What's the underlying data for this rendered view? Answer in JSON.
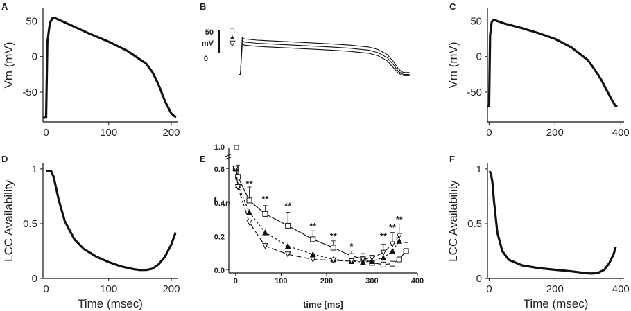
{
  "panel_labels": {
    "A": "A",
    "B": "B",
    "C": "C",
    "D": "D",
    "E": "E",
    "F": "F"
  },
  "chart_data": [
    {
      "id": "A",
      "type": "line",
      "title": "",
      "xlabel": "",
      "ylabel": "Vm (mV)",
      "xlim": [
        -5,
        210
      ],
      "ylim": [
        -92,
        68
      ],
      "xticks": [
        0,
        100,
        200
      ],
      "yticks": [
        -50,
        0,
        50
      ],
      "series": [
        {
          "name": "Vm",
          "x": [
            -5,
            -1,
            0,
            2,
            6,
            10,
            15,
            20,
            30,
            50,
            70,
            100,
            130,
            160,
            170,
            180,
            190,
            200,
            205,
            208
          ],
          "y": [
            -86,
            -86,
            -86,
            20,
            47,
            54,
            54,
            52,
            48,
            40,
            32,
            21,
            8,
            -10,
            -22,
            -40,
            -63,
            -80,
            -84,
            -85
          ]
        }
      ]
    },
    {
      "id": "B",
      "type": "line",
      "title": "",
      "xlabel": "",
      "ylabel": "",
      "scale_bar": {
        "top_label": "50",
        "unit_label": "mV",
        "bottom_label": "0"
      },
      "legend": [
        "□",
        "▲",
        "▽"
      ],
      "xlim": [
        0,
        100
      ],
      "ylim": [
        -15,
        65
      ],
      "series": [
        {
          "name": "trace 1",
          "x": [
            0,
            1,
            2,
            3,
            10,
            30,
            50,
            60,
            70,
            75,
            80,
            83,
            86,
            88,
            89,
            92
          ],
          "y": [
            -10,
            -10,
            50,
            47,
            45,
            42,
            39,
            37,
            34,
            30,
            22,
            12,
            -1,
            -6,
            -7,
            -7
          ]
        },
        {
          "name": "trace 2",
          "x": [
            0,
            1,
            2,
            3,
            10,
            30,
            50,
            60,
            70,
            75,
            80,
            83,
            86,
            88,
            89,
            92
          ],
          "y": [
            -10,
            -10,
            45,
            42,
            40,
            37,
            34,
            32,
            29,
            25,
            17,
            7,
            -5,
            -9,
            -10,
            -10
          ]
        },
        {
          "name": "trace 3",
          "x": [
            0,
            1,
            2,
            3,
            10,
            30,
            50,
            60,
            70,
            75,
            80,
            83,
            86,
            88,
            89,
            92
          ],
          "y": [
            -10,
            -10,
            40,
            37,
            35,
            32,
            29,
            27,
            24,
            20,
            12,
            2,
            -8,
            -11,
            -12,
            -12
          ]
        }
      ]
    },
    {
      "id": "C",
      "type": "line",
      "title": "",
      "xlabel": "",
      "ylabel": "Vm (mV)",
      "xlim": [
        -5,
        410
      ],
      "ylim": [
        -92,
        68
      ],
      "xticks": [
        0,
        200,
        400
      ],
      "yticks": [
        -50,
        0,
        50
      ],
      "series": [
        {
          "name": "Vm",
          "x": [
            -5,
            -1,
            0,
            3,
            8,
            15,
            25,
            50,
            100,
            150,
            200,
            250,
            300,
            320,
            340,
            360,
            375,
            385,
            390
          ],
          "y": [
            -70,
            -70,
            -70,
            30,
            49,
            52,
            50,
            46,
            40,
            33,
            25,
            13,
            -5,
            -18,
            -32,
            -50,
            -63,
            -70,
            -70
          ]
        }
      ]
    },
    {
      "id": "D",
      "type": "line",
      "title": "",
      "xlabel": "Time (msec)",
      "ylabel": "LCC Availability",
      "xlim": [
        -5,
        210
      ],
      "ylim": [
        0,
        1.05
      ],
      "xticks": [
        0,
        100,
        200
      ],
      "yticks": [
        0,
        0.5,
        1
      ],
      "series": [
        {
          "name": "LCC",
          "x": [
            0,
            3,
            8,
            12,
            20,
            30,
            45,
            60,
            80,
            100,
            120,
            140,
            150,
            160,
            170,
            180,
            190,
            200,
            207
          ],
          "y": [
            0.98,
            0.98,
            0.98,
            0.93,
            0.72,
            0.52,
            0.36,
            0.27,
            0.2,
            0.15,
            0.11,
            0.085,
            0.077,
            0.078,
            0.09,
            0.13,
            0.2,
            0.31,
            0.42
          ]
        }
      ]
    },
    {
      "id": "E",
      "type": "line",
      "title": "",
      "xlabel": "time [ms]",
      "ylabel": "f",
      "ylabel_sub": "AP",
      "xlim": [
        -15,
        400
      ],
      "ylim": [
        -0.02,
        0.72
      ],
      "xticks": [
        0,
        100,
        200,
        300,
        400
      ],
      "yticks": [
        0.0,
        0.2,
        0.4,
        0.6
      ],
      "break_label": "1.0",
      "series": [
        {
          "name": "open squares",
          "marker": "square",
          "dash": "",
          "x": [
            0,
            5,
            30,
            65,
            115,
            170,
            215,
            255,
            280,
            300,
            325,
            345,
            360,
            375
          ],
          "y": [
            0.6,
            0.55,
            0.41,
            0.33,
            0.26,
            0.18,
            0.13,
            0.08,
            0.065,
            0.04,
            0.03,
            0.035,
            0.06,
            0.11
          ]
        },
        {
          "name": "filled triangles",
          "marker": "triangle",
          "dash": "3,3",
          "x": [
            0,
            5,
            30,
            65,
            115,
            170,
            215,
            255,
            280,
            300,
            325,
            345,
            360
          ],
          "y": [
            0.6,
            0.5,
            0.34,
            0.22,
            0.14,
            0.09,
            0.06,
            0.05,
            0.045,
            0.05,
            0.07,
            0.11,
            0.17
          ]
        },
        {
          "name": "open inv triangles",
          "marker": "invtriangle",
          "dash": "8,4",
          "x": [
            0,
            5,
            30,
            65,
            115,
            170,
            215,
            255,
            280,
            300,
            325,
            345,
            360
          ],
          "y": [
            0.6,
            0.49,
            0.28,
            0.14,
            0.09,
            0.06,
            0.055,
            0.05,
            0.06,
            0.07,
            0.1,
            0.15,
            0.2
          ]
        }
      ],
      "error_bars": [
        {
          "x": 5,
          "y": 0.55,
          "e": 0.07
        },
        {
          "x": 30,
          "y": 0.41,
          "e": 0.08
        },
        {
          "x": 65,
          "y": 0.33,
          "e": 0.05
        },
        {
          "x": 115,
          "y": 0.26,
          "e": 0.08
        },
        {
          "x": 170,
          "y": 0.18,
          "e": 0.05
        },
        {
          "x": 215,
          "y": 0.13,
          "e": 0.04
        },
        {
          "x": 255,
          "y": 0.08,
          "e": 0.03
        },
        {
          "x": 280,
          "y": 0.065,
          "e": 0.03
        },
        {
          "x": 325,
          "y": 0.1,
          "e": 0.05
        },
        {
          "x": 345,
          "y": 0.15,
          "e": 0.07
        },
        {
          "x": 360,
          "y": 0.2,
          "e": 0.07
        },
        {
          "x": 375,
          "y": 0.11,
          "e": 0.05
        }
      ],
      "annotations": [
        {
          "x": 30,
          "y": 0.49,
          "text": "**"
        },
        {
          "x": 65,
          "y": 0.4,
          "text": "**"
        },
        {
          "x": 115,
          "y": 0.36,
          "text": "**"
        },
        {
          "x": 170,
          "y": 0.24,
          "text": "**"
        },
        {
          "x": 215,
          "y": 0.18,
          "text": "**"
        },
        {
          "x": 255,
          "y": 0.12,
          "text": "*"
        },
        {
          "x": 325,
          "y": 0.18,
          "text": "**"
        },
        {
          "x": 345,
          "y": 0.23,
          "text": "**"
        },
        {
          "x": 360,
          "y": 0.28,
          "text": "**"
        }
      ]
    },
    {
      "id": "F",
      "type": "line",
      "title": "",
      "xlabel": "Time (msec)",
      "ylabel": "LCC Availability",
      "xlim": [
        -5,
        410
      ],
      "ylim": [
        0,
        1.05
      ],
      "xticks": [
        0,
        200,
        400
      ],
      "yticks": [
        0,
        0.5,
        1
      ],
      "series": [
        {
          "name": "LCC",
          "x": [
            0,
            3,
            6,
            10,
            15,
            25,
            40,
            60,
            100,
            150,
            200,
            250,
            290,
            310,
            330,
            350,
            365,
            378,
            385
          ],
          "y": [
            0.98,
            0.97,
            0.95,
            0.88,
            0.7,
            0.42,
            0.25,
            0.17,
            0.12,
            0.095,
            0.08,
            0.065,
            0.05,
            0.045,
            0.05,
            0.08,
            0.14,
            0.22,
            0.29
          ]
        }
      ]
    }
  ]
}
